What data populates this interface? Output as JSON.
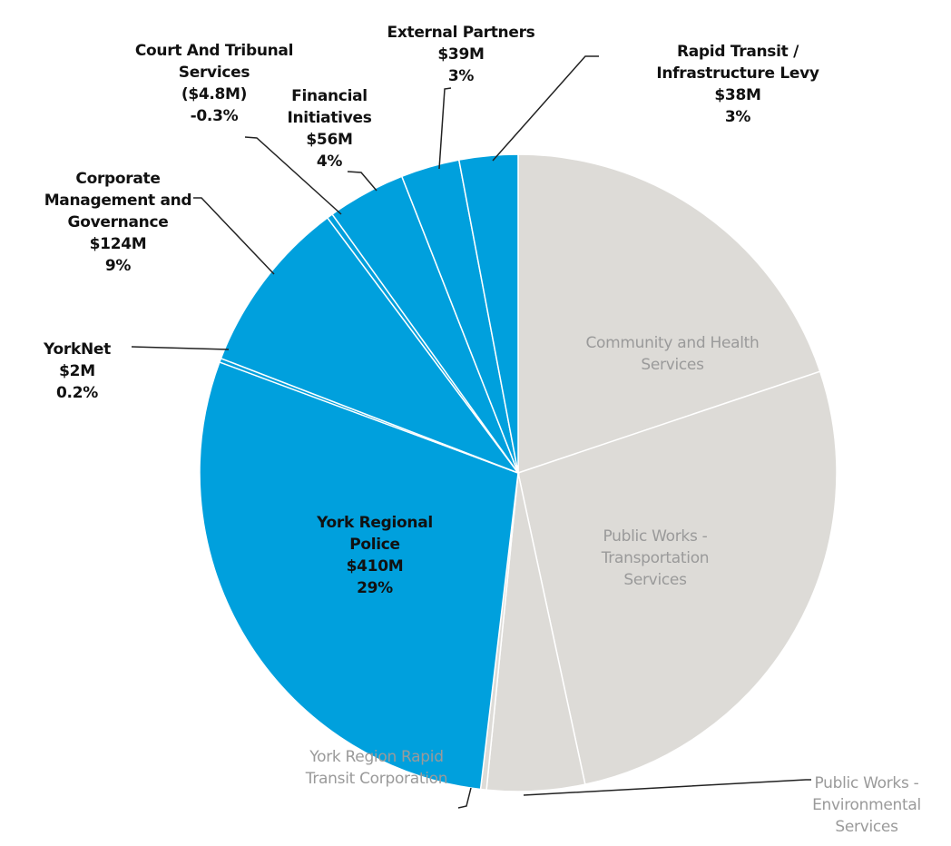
{
  "chart_data": {
    "type": "pie",
    "categories": [
      "Community and Health\nServices",
      "Public Works -\nTransportation\nServices",
      "Public Works -\nEnvironmental\nServices",
      "York Region Rapid\nTransit Corporation",
      "York Regional\nPolice",
      "YorkNet",
      "Corporate\nManagement and\nGovernance",
      "Court And Tribunal\nServices",
      "Financial\nInitiatives",
      "External Partners",
      "Rapid Transit /\nInfrastructure Levy"
    ],
    "values": [
      20,
      27,
      5,
      0.3,
      29,
      0.2,
      9,
      -0.3,
      4,
      3,
      3
    ],
    "value_labels": [
      null,
      null,
      null,
      null,
      "29%",
      "0.2%",
      "9%",
      "-0.3%",
      "4%",
      "3%",
      "3%"
    ],
    "amounts": [
      null,
      null,
      null,
      null,
      "$410M",
      "$2M",
      "$124M",
      "($4.8M)",
      "$56M",
      "$39M",
      "$38M"
    ],
    "colors": [
      "#dddbd7",
      "#dddbd7",
      "#dddbd7",
      "#dddbd7",
      "#00a0dd",
      "#00a0dd",
      "#00a0dd",
      "#00a0dd",
      "#00a0dd",
      "#00a0dd",
      "#00a0dd"
    ]
  }
}
